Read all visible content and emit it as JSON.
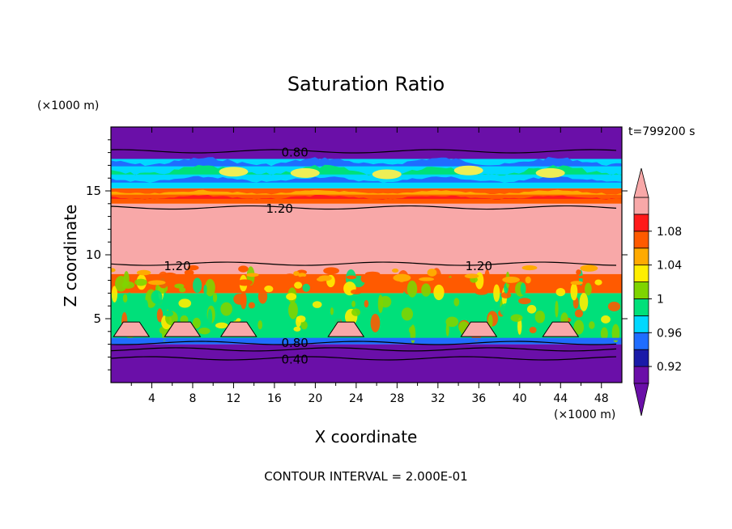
{
  "chart_data": {
    "type": "heatmap",
    "title": "Saturation Ratio",
    "xlabel": "X coordinate",
    "ylabel": "Z coordinate",
    "x_units": "(×1000 m)",
    "y_units": "(×1000 m)",
    "time_label": "t=799200 s",
    "footer": "CONTOUR INTERVAL = 2.000E-01",
    "xlim": [
      0,
      50
    ],
    "ylim": [
      0,
      20
    ],
    "x_ticks": [
      "4",
      "8",
      "12",
      "16",
      "20",
      "24",
      "28",
      "32",
      "36",
      "40",
      "44",
      "48"
    ],
    "y_ticks": [
      "5",
      "10",
      "15"
    ],
    "colorbar_ticks": [
      "0.92",
      "0.96",
      "1",
      "1.04",
      "1.08"
    ],
    "colorbar_colors": [
      "#6a0fa8",
      "#1a1aa8",
      "#1f6dff",
      "#00d8ff",
      "#00e07a",
      "#7fd400",
      "#ffee00",
      "#ffaa00",
      "#ff5a00",
      "#ff1a1a",
      "#f8a8a8"
    ],
    "contour_labels": [
      {
        "text": "0.80",
        "x": 18,
        "y": 18.0
      },
      {
        "text": "1.20",
        "x": 16.5,
        "y": 13.6
      },
      {
        "text": "1.20",
        "x": 6.5,
        "y": 9.1
      },
      {
        "text": "1.20",
        "x": 36,
        "y": 9.1
      },
      {
        "text": "0.80",
        "x": 18,
        "y": 3.1
      },
      {
        "text": "0.40",
        "x": 18,
        "y": 1.8
      }
    ],
    "layers": [
      {
        "z": [
          0,
          3.0
        ],
        "level": "below 0.92",
        "color": "#6a0fa8"
      },
      {
        "z": [
          3.0,
          3.4
        ],
        "level": "0.96",
        "color": "#1f6dff"
      },
      {
        "z": [
          3.4,
          7.0
        ],
        "level": "0.98-1.02",
        "color": "#00e07a"
      },
      {
        "z": [
          7.0,
          8.5
        ],
        "level": "1.02-1.08",
        "color": "#ff5a00"
      },
      {
        "z": [
          8.5,
          14.0
        ],
        "level": "above 1.08",
        "color": "#f8a8a8"
      },
      {
        "z": [
          14.0,
          15.2
        ],
        "level": "1.04-1.08",
        "color": "#ff5a00"
      },
      {
        "z": [
          15.2,
          17.5
        ],
        "level": "0.96-1.04",
        "color": "#00d8ff"
      },
      {
        "z": [
          17.5,
          20
        ],
        "level": "below 0.92",
        "color": "#6a0fa8"
      }
    ]
  }
}
